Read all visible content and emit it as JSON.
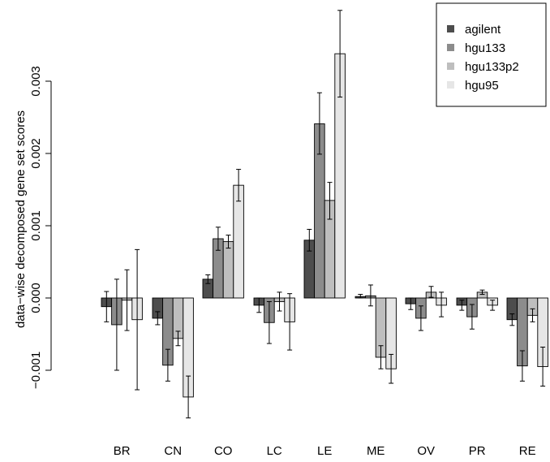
{
  "chart_data": {
    "type": "bar",
    "title": "",
    "xlabel": "",
    "ylabel": "data−wise decomposed gene set scores",
    "ylim": [
      -0.00195,
      0.00395
    ],
    "yticks": [
      -0.001,
      0.0,
      0.001,
      0.002,
      0.003
    ],
    "ytick_labels": [
      "−0.001",
      "0.000",
      "0.001",
      "0.002",
      "0.003"
    ],
    "categories": [
      "BR",
      "CN",
      "CO",
      "LC",
      "LE",
      "ME",
      "OV",
      "PR",
      "RE"
    ],
    "legend_position": "top-right",
    "grid": false,
    "series": [
      {
        "name": "agilent",
        "color": "#4d4d4d",
        "values": [
          -0.00012,
          -0.00028,
          0.00026,
          -0.0001,
          0.0008,
          2e-05,
          -8e-05,
          -0.0001,
          -0.0003
        ],
        "err_low": [
          -0.00033,
          -0.00037,
          0.0002,
          -0.0002,
          0.00065,
          0.0,
          -0.00016,
          -0.00017,
          -0.00038
        ],
        "err_high": [
          9e-05,
          -0.00019,
          0.00032,
          0.0,
          0.00095,
          5e-05,
          0.0,
          -3e-05,
          -0.00022
        ]
      },
      {
        "name": "hgu133",
        "color": "#8c8c8c",
        "values": [
          -0.00037,
          -0.00093,
          0.00082,
          -0.00034,
          0.00241,
          3e-05,
          -0.00028,
          -0.00026,
          -0.00094
        ],
        "err_low": [
          -0.001,
          -0.00115,
          0.00066,
          -0.00063,
          0.00199,
          -0.00011,
          -0.00045,
          -0.00043,
          -0.00115
        ],
        "err_high": [
          0.00026,
          -0.00071,
          0.00098,
          -5e-05,
          0.00284,
          0.00018,
          -0.00011,
          -9e-05,
          -0.00073
        ]
      },
      {
        "name": "hgu133p2",
        "color": "#bebebe",
        "values": [
          -3e-05,
          -0.00056,
          0.00078,
          -5e-05,
          0.00135,
          -0.00082,
          8e-05,
          8e-05,
          -0.00024
        ],
        "err_low": [
          -0.00045,
          -0.00066,
          0.00069,
          -0.00018,
          0.00109,
          -0.00098,
          1e-05,
          5e-05,
          -0.00033
        ],
        "err_high": [
          0.00039,
          -0.00046,
          0.00087,
          8e-05,
          0.0016,
          -0.00066,
          0.00016,
          0.00011,
          -0.00015
        ]
      },
      {
        "name": "hgu95",
        "color": "#e6e6e6",
        "values": [
          -0.0003,
          -0.00137,
          0.00156,
          -0.00033,
          0.00338,
          -0.00098,
          -0.0001,
          -0.0001,
          -0.00095
        ],
        "err_low": [
          -0.00127,
          -0.00166,
          0.00134,
          -0.00072,
          0.00398,
          -0.00118,
          -0.00026,
          -0.00017,
          -0.00122
        ],
        "err_high": [
          0.00067,
          -0.00108,
          0.00178,
          6e-05,
          0.00278,
          -0.00078,
          8e-05,
          -3e-05,
          -0.00068
        ]
      }
    ]
  }
}
